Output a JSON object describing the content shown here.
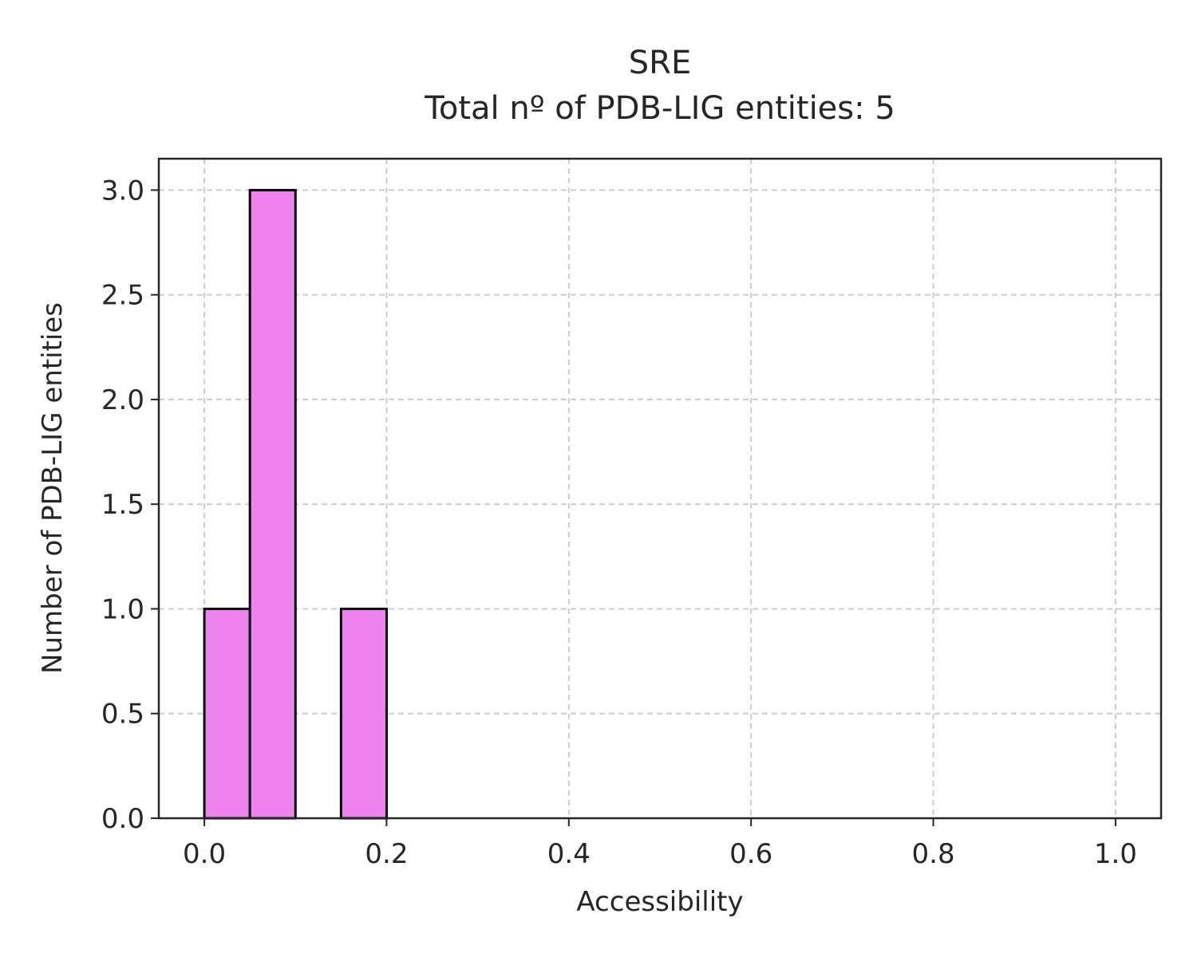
{
  "chart_data": {
    "type": "bar",
    "title": "SRE",
    "subtitle": "Total nº of PDB-LIG entities: 5",
    "xlabel": "Accessibility",
    "ylabel": "Number of PDB-LIG entities",
    "xlim": [
      -0.05,
      1.05
    ],
    "ylim": [
      0,
      3.15
    ],
    "xticks": [
      0.0,
      0.2,
      0.4,
      0.6,
      0.8,
      1.0
    ],
    "xtick_labels": [
      "0.0",
      "0.2",
      "0.4",
      "0.6",
      "0.8",
      "1.0"
    ],
    "yticks": [
      0.0,
      0.5,
      1.0,
      1.5,
      2.0,
      2.5,
      3.0
    ],
    "ytick_labels": [
      "0.0",
      "0.5",
      "1.0",
      "1.5",
      "2.0",
      "2.5",
      "3.0"
    ],
    "bins": [
      {
        "x0": 0.0,
        "x1": 0.05,
        "value": 1
      },
      {
        "x0": 0.05,
        "x1": 0.1,
        "value": 3
      },
      {
        "x0": 0.15,
        "x1": 0.2,
        "value": 1
      }
    ],
    "grid": true,
    "bar_color": "#ee82ee",
    "edge_color": "#000000"
  }
}
